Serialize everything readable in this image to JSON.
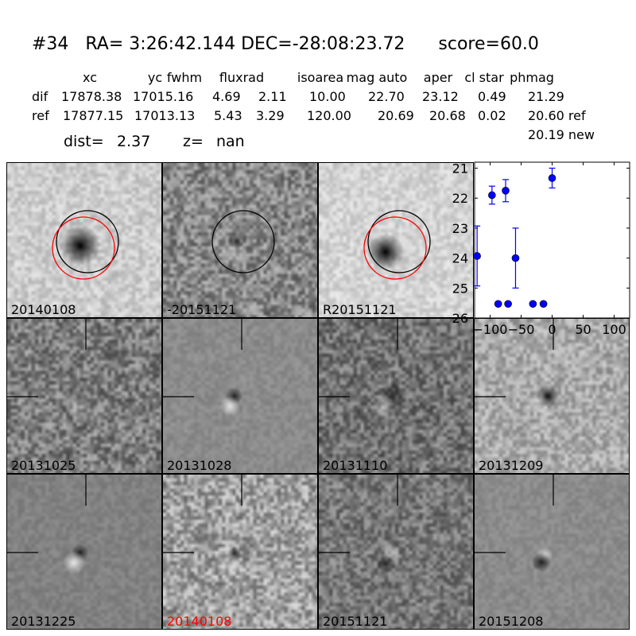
{
  "header": {
    "title": "#34   RA= 3:26:42.144 DEC=-28:08:23.72      score=60.0",
    "columns": [
      "xc",
      "yc",
      "fwhm",
      "fluxrad",
      "isoarea",
      "mag auto",
      "aper",
      "cl star",
      "phmag"
    ],
    "rows": [
      {
        "label": "dif",
        "values": [
          "17878.38",
          "17015.16",
          "4.69",
          "2.11",
          "10.00",
          "22.70",
          "23.12",
          "0.49",
          "21.29"
        ]
      },
      {
        "label": "ref",
        "values": [
          "17877.15",
          "17013.13",
          "5.43",
          "3.29",
          "120.00",
          "20.69",
          "20.68",
          "0.02",
          "20.60 ref"
        ]
      }
    ],
    "extra_phmag": "20.19 new",
    "dist_label": "dist=",
    "dist_value": "2.37",
    "z_label": "z=",
    "z_value": "nan"
  },
  "stamps": [
    {
      "label": "20140108",
      "label_color": "#000000",
      "circles": [
        "#000000",
        "#ff0000"
      ]
    },
    {
      "label": "-20151121",
      "label_color": "#000000",
      "circles": [
        "#000000"
      ]
    },
    {
      "label": "R20151121",
      "label_color": "#000000",
      "circles": [
        "#000000",
        "#ff0000"
      ]
    },
    {
      "label": "20131025",
      "label_color": "#000000",
      "crosshair": true
    },
    {
      "label": "20131028",
      "label_color": "#000000",
      "crosshair": true
    },
    {
      "label": "20131110",
      "label_color": "#000000",
      "crosshair": true
    },
    {
      "label": "20131209",
      "label_color": "#000000",
      "crosshair": true
    },
    {
      "label": "20131225",
      "label_color": "#000000",
      "crosshair": true
    },
    {
      "label": "20140108",
      "label_color": "#ff0000",
      "crosshair": true
    },
    {
      "label": "20151121",
      "label_color": "#000000",
      "crosshair": true
    },
    {
      "label": "20151208",
      "label_color": "#000000",
      "crosshair": true
    }
  ],
  "chart_data": {
    "type": "scatter",
    "title": "",
    "xlabel": "",
    "ylabel": "",
    "xlim": [
      -125,
      125
    ],
    "ylim": [
      26,
      20.8
    ],
    "y_inverted": true,
    "xticks": [
      -100,
      -50,
      0,
      50,
      100
    ],
    "xtick_labels": [
      "−100",
      "−50",
      "0",
      "50",
      "100"
    ],
    "yticks": [
      21,
      22,
      23,
      24,
      25,
      26
    ],
    "ytick_labels": [
      "21",
      "22",
      "23",
      "24",
      "25",
      "26"
    ],
    "grid": false,
    "color": "#0000ff",
    "points": [
      {
        "x": -121,
        "y": 23.93,
        "err": 1.0
      },
      {
        "x": -97,
        "y": 21.9,
        "err": 0.3
      },
      {
        "x": -87,
        "y": 25.53,
        "err": 0.05
      },
      {
        "x": -75,
        "y": 21.75,
        "err": 0.37
      },
      {
        "x": -71,
        "y": 25.53,
        "err": 0.05
      },
      {
        "x": -59,
        "y": 24.0,
        "err": 1.0
      },
      {
        "x": -31,
        "y": 25.53,
        "err": 0.05
      },
      {
        "x": -14,
        "y": 25.53,
        "err": 0.05
      },
      {
        "x": 0,
        "y": 21.33,
        "err": 0.33
      }
    ]
  }
}
